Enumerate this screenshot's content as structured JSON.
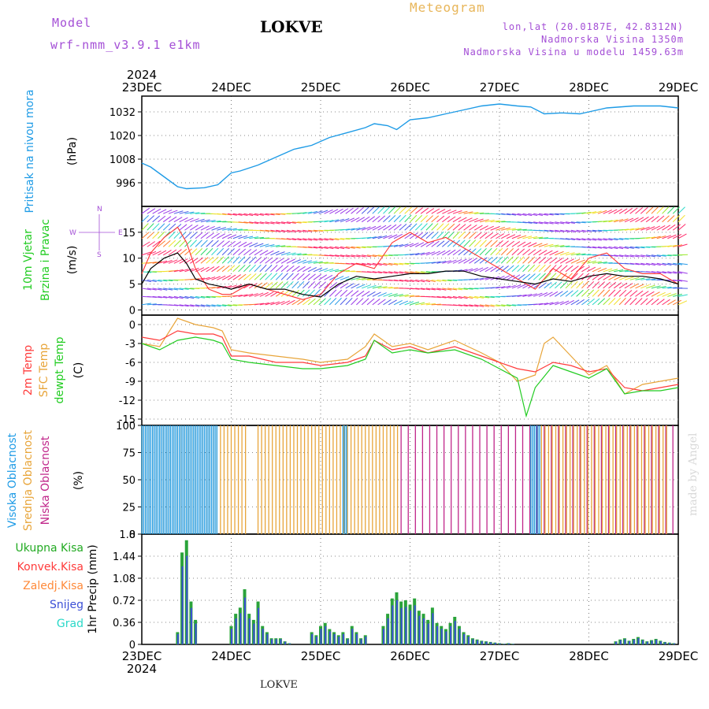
{
  "header": {
    "model_label": "Model",
    "model_name": "wrf-nmm_v3.9.1  e1km",
    "station": "LOKVE",
    "chart_kind": "Meteogram",
    "coords": "lon,lat (20.0187E, 42.8312N)",
    "elevation": "Nadmorska Visina 1350m",
    "model_elevation": "Nadmorska Visina u modelu 1459.63m",
    "footer_station": "LOKVE",
    "watermark": "made by Angel"
  },
  "colors": {
    "pressure": "#1e9be6",
    "temp2m": "#ff3b3b",
    "sfc": "#e8a53a",
    "dewpt": "#22cc22",
    "high_cloud": "#1e9be6",
    "mid_cloud": "#e8a53a",
    "low_cloud": "#c0268a",
    "precip_total": "#2aa33a",
    "precip_snow": "#3b4fd6",
    "wind_speed": "#000000",
    "wind_gust": "#ff3333",
    "direction_purple": "#a44fd6"
  },
  "chart_data": [
    {
      "type": "line",
      "panel": "pressure",
      "ylabel_name": "Pritisak na nivou mora",
      "ylabel_unit": "(hPa)",
      "year": "2024",
      "x_ticks": [
        "23DEC",
        "24DEC",
        "25DEC",
        "26DEC",
        "27DEC",
        "28DEC",
        "29DEC"
      ],
      "ylim": [
        984,
        1040
      ],
      "yticks": [
        996,
        1008,
        1020,
        1032
      ],
      "series": [
        {
          "points": [
            [
              0,
              1006
            ],
            [
              0.1,
              1004
            ],
            [
              0.25,
              999
            ],
            [
              0.4,
              994
            ],
            [
              0.5,
              993
            ],
            [
              0.7,
              993.5
            ],
            [
              0.85,
              995
            ],
            [
              1.0,
              1001
            ],
            [
              1.1,
              1002
            ],
            [
              1.3,
              1005
            ],
            [
              1.5,
              1009
            ],
            [
              1.7,
              1013
            ],
            [
              1.9,
              1015
            ],
            [
              2.1,
              1019
            ],
            [
              2.3,
              1021.5
            ],
            [
              2.5,
              1024
            ],
            [
              2.6,
              1026
            ],
            [
              2.75,
              1025
            ],
            [
              2.85,
              1023
            ],
            [
              3.0,
              1028
            ],
            [
              3.2,
              1029
            ],
            [
              3.4,
              1031
            ],
            [
              3.6,
              1033
            ],
            [
              3.8,
              1035
            ],
            [
              4.0,
              1036
            ],
            [
              4.2,
              1035
            ],
            [
              4.35,
              1034.5
            ],
            [
              4.5,
              1031
            ],
            [
              4.7,
              1031.5
            ],
            [
              4.9,
              1031
            ],
            [
              5.0,
              1032
            ],
            [
              5.2,
              1034
            ],
            [
              5.5,
              1035
            ],
            [
              5.8,
              1035
            ],
            [
              6.0,
              1034
            ]
          ]
        }
      ]
    },
    {
      "type": "line",
      "panel": "wind",
      "ylabel_name_1": "10m Vjetar",
      "ylabel_name_2": "Brzina i Pravac",
      "ylabel_unit": "(m/s)",
      "compass_n": "N",
      "compass_e": "E",
      "compass_w": "W",
      "compass_s": "S",
      "ylim": [
        -1,
        20
      ],
      "yticks": [
        0,
        5,
        10,
        15
      ],
      "series": [
        {
          "name": "speed",
          "points": [
            [
              0,
              5
            ],
            [
              0.1,
              8
            ],
            [
              0.25,
              10
            ],
            [
              0.4,
              11
            ],
            [
              0.5,
              9
            ],
            [
              0.6,
              6
            ],
            [
              0.75,
              5
            ],
            [
              0.9,
              4.5
            ],
            [
              1.0,
              4
            ],
            [
              1.2,
              5
            ],
            [
              1.4,
              4
            ],
            [
              1.6,
              4
            ],
            [
              1.8,
              3
            ],
            [
              2.0,
              2.5
            ],
            [
              2.2,
              5
            ],
            [
              2.4,
              6.5
            ],
            [
              2.6,
              6
            ],
            [
              2.8,
              6.5
            ],
            [
              3.0,
              7
            ],
            [
              3.2,
              7
            ],
            [
              3.4,
              7.5
            ],
            [
              3.6,
              7.5
            ],
            [
              3.8,
              6.5
            ],
            [
              4.0,
              6
            ],
            [
              4.2,
              5.5
            ],
            [
              4.4,
              5
            ],
            [
              4.6,
              6
            ],
            [
              4.8,
              5.5
            ],
            [
              5.0,
              6.5
            ],
            [
              5.2,
              7
            ],
            [
              5.4,
              6.5
            ],
            [
              5.6,
              6.5
            ],
            [
              5.8,
              6
            ],
            [
              6.0,
              5
            ]
          ]
        },
        {
          "name": "gust",
          "points": [
            [
              0,
              7
            ],
            [
              0.1,
              11
            ],
            [
              0.25,
              14
            ],
            [
              0.4,
              16
            ],
            [
              0.5,
              13
            ],
            [
              0.6,
              8
            ],
            [
              0.75,
              4
            ],
            [
              0.9,
              3
            ],
            [
              1.0,
              3
            ],
            [
              1.2,
              5
            ],
            [
              1.4,
              4
            ],
            [
              1.6,
              3
            ],
            [
              1.8,
              2
            ],
            [
              2.0,
              3
            ],
            [
              2.2,
              7
            ],
            [
              2.4,
              9
            ],
            [
              2.6,
              8
            ],
            [
              2.8,
              13
            ],
            [
              3.0,
              15
            ],
            [
              3.2,
              13
            ],
            [
              3.4,
              14
            ],
            [
              3.6,
              12
            ],
            [
              3.8,
              10
            ],
            [
              4.0,
              8
            ],
            [
              4.2,
              6
            ],
            [
              4.4,
              4
            ],
            [
              4.6,
              8
            ],
            [
              4.8,
              6
            ],
            [
              5.0,
              10
            ],
            [
              5.2,
              11
            ],
            [
              5.4,
              8
            ],
            [
              5.6,
              7
            ],
            [
              5.8,
              7
            ],
            [
              6.0,
              5
            ]
          ]
        }
      ]
    },
    {
      "type": "line",
      "panel": "temperature",
      "ylabel_name_1": "2m Temp",
      "ylabel_name_2": "SFC Temp",
      "ylabel_name_3": "dewpt Temp",
      "ylabel_unit": "(C)",
      "ylim": [
        -16,
        1.5
      ],
      "yticks": [
        0,
        -3,
        -6,
        -9,
        -12,
        -15
      ],
      "series": [
        {
          "name": "2m Temp",
          "points": [
            [
              0,
              -2
            ],
            [
              0.2,
              -2.5
            ],
            [
              0.4,
              -1
            ],
            [
              0.6,
              -1.5
            ],
            [
              0.8,
              -1.5
            ],
            [
              0.9,
              -2
            ],
            [
              1.0,
              -5
            ],
            [
              1.2,
              -5
            ],
            [
              1.5,
              -6
            ],
            [
              1.8,
              -6
            ],
            [
              2.0,
              -6.5
            ],
            [
              2.3,
              -6
            ],
            [
              2.5,
              -5
            ],
            [
              2.6,
              -2.5
            ],
            [
              2.8,
              -4
            ],
            [
              3.0,
              -3.5
            ],
            [
              3.2,
              -4.5
            ],
            [
              3.5,
              -3.5
            ],
            [
              3.8,
              -5
            ],
            [
              4.0,
              -6
            ],
            [
              4.2,
              -7
            ],
            [
              4.4,
              -7.5
            ],
            [
              4.6,
              -6
            ],
            [
              4.8,
              -6.5
            ],
            [
              5.0,
              -7.5
            ],
            [
              5.2,
              -7
            ],
            [
              5.4,
              -10
            ],
            [
              5.6,
              -10.5
            ],
            [
              5.8,
              -10
            ],
            [
              6.0,
              -9.5
            ]
          ]
        },
        {
          "name": "SFC Temp",
          "points": [
            [
              0,
              -3
            ],
            [
              0.2,
              -3.5
            ],
            [
              0.4,
              1
            ],
            [
              0.6,
              0
            ],
            [
              0.8,
              -0.5
            ],
            [
              0.9,
              -1
            ],
            [
              1.0,
              -4
            ],
            [
              1.2,
              -4.5
            ],
            [
              1.5,
              -5
            ],
            [
              1.8,
              -5.5
            ],
            [
              2.0,
              -6
            ],
            [
              2.3,
              -5.5
            ],
            [
              2.5,
              -3.5
            ],
            [
              2.6,
              -1.5
            ],
            [
              2.8,
              -3.5
            ],
            [
              3.0,
              -3
            ],
            [
              3.2,
              -4
            ],
            [
              3.5,
              -2.5
            ],
            [
              3.8,
              -4.5
            ],
            [
              4.0,
              -6
            ],
            [
              4.2,
              -9
            ],
            [
              4.4,
              -8
            ],
            [
              4.5,
              -3
            ],
            [
              4.6,
              -2
            ],
            [
              4.8,
              -5
            ],
            [
              5.0,
              -8
            ],
            [
              5.2,
              -6.5
            ],
            [
              5.4,
              -11
            ],
            [
              5.6,
              -9.5
            ],
            [
              5.8,
              -9
            ],
            [
              6.0,
              -8.5
            ]
          ]
        },
        {
          "name": "dewpt Temp",
          "points": [
            [
              0,
              -3
            ],
            [
              0.2,
              -4
            ],
            [
              0.4,
              -2.5
            ],
            [
              0.6,
              -2
            ],
            [
              0.8,
              -2.5
            ],
            [
              0.9,
              -3
            ],
            [
              1.0,
              -5.5
            ],
            [
              1.2,
              -6
            ],
            [
              1.5,
              -6.5
            ],
            [
              1.8,
              -7
            ],
            [
              2.0,
              -7
            ],
            [
              2.3,
              -6.5
            ],
            [
              2.5,
              -5.5
            ],
            [
              2.6,
              -2.5
            ],
            [
              2.8,
              -4.5
            ],
            [
              3.0,
              -4
            ],
            [
              3.2,
              -4.5
            ],
            [
              3.5,
              -4
            ],
            [
              3.8,
              -5.5
            ],
            [
              4.0,
              -7
            ],
            [
              4.2,
              -8.5
            ],
            [
              4.3,
              -14.5
            ],
            [
              4.4,
              -10
            ],
            [
              4.6,
              -6.5
            ],
            [
              4.8,
              -7.5
            ],
            [
              5.0,
              -8.5
            ],
            [
              5.2,
              -7
            ],
            [
              5.4,
              -11
            ],
            [
              5.6,
              -10.5
            ],
            [
              5.8,
              -10.5
            ],
            [
              6.0,
              -10
            ]
          ]
        }
      ]
    },
    {
      "type": "bar",
      "panel": "clouds",
      "ylabel_name_1": "Visoka Oblacnost",
      "ylabel_name_2": "Srednja Oblacnost",
      "ylabel_name_3": "Niska Oblacnost",
      "ylabel_unit": "(%)",
      "ylim": [
        0,
        100
      ],
      "yticks": [
        0,
        25,
        50,
        75,
        100
      ],
      "x_ranges": {
        "high": [
          [
            0.0,
            0.85
          ],
          [
            2.25,
            2.3
          ],
          [
            4.35,
            4.45
          ]
        ],
        "mid": [
          [
            0.0,
            1.2
          ],
          [
            1.3,
            2.9
          ],
          [
            4.35,
            5.9
          ]
        ],
        "low": [
          [
            2.9,
            6.0
          ]
        ]
      }
    },
    {
      "type": "bar",
      "panel": "precip",
      "legend": [
        "Ukupna Kisa",
        "Konvek.Kisa",
        "Zaledj.Kisa",
        "Snijeg",
        "Grad"
      ],
      "ylabel_unit": "1hr Precip (mm)",
      "ylim": [
        0,
        1.8
      ],
      "yticks": [
        0,
        0.36,
        0.72,
        1.08,
        1.44,
        1.8
      ],
      "x": [
        0.4,
        0.45,
        0.5,
        0.55,
        0.6,
        1.0,
        1.05,
        1.1,
        1.15,
        1.2,
        1.25,
        1.3,
        1.35,
        1.4,
        1.45,
        1.5,
        1.55,
        1.6,
        1.65,
        1.9,
        1.95,
        2.0,
        2.05,
        2.1,
        2.15,
        2.2,
        2.25,
        2.3,
        2.35,
        2.4,
        2.45,
        2.5,
        2.7,
        2.75,
        2.8,
        2.85,
        2.9,
        2.95,
        3.0,
        3.05,
        3.1,
        3.15,
        3.2,
        3.25,
        3.3,
        3.35,
        3.4,
        3.45,
        3.5,
        3.55,
        3.6,
        3.65,
        3.7,
        3.75,
        3.8,
        3.85,
        3.9,
        3.95,
        4.0,
        4.05,
        4.1,
        4.15,
        5.3,
        5.35,
        5.4,
        5.45,
        5.5,
        5.55,
        5.6,
        5.65,
        5.7,
        5.75,
        5.8,
        5.85,
        5.9,
        5.95
      ],
      "values": [
        0.2,
        1.5,
        1.7,
        0.7,
        0.4,
        0.3,
        0.5,
        0.6,
        0.9,
        0.5,
        0.4,
        0.7,
        0.3,
        0.2,
        0.1,
        0.1,
        0.1,
        0.05,
        0.02,
        0.2,
        0.15,
        0.3,
        0.35,
        0.25,
        0.2,
        0.15,
        0.2,
        0.1,
        0.3,
        0.2,
        0.1,
        0.15,
        0.3,
        0.5,
        0.75,
        0.85,
        0.7,
        0.72,
        0.65,
        0.75,
        0.55,
        0.5,
        0.4,
        0.6,
        0.35,
        0.3,
        0.25,
        0.35,
        0.45,
        0.3,
        0.2,
        0.15,
        0.1,
        0.08,
        0.06,
        0.05,
        0.04,
        0.03,
        0.02,
        0.01,
        0.02,
        0.01,
        0.05,
        0.08,
        0.1,
        0.06,
        0.09,
        0.12,
        0.08,
        0.05,
        0.07,
        0.09,
        0.06,
        0.04,
        0.03,
        0.02
      ]
    }
  ]
}
